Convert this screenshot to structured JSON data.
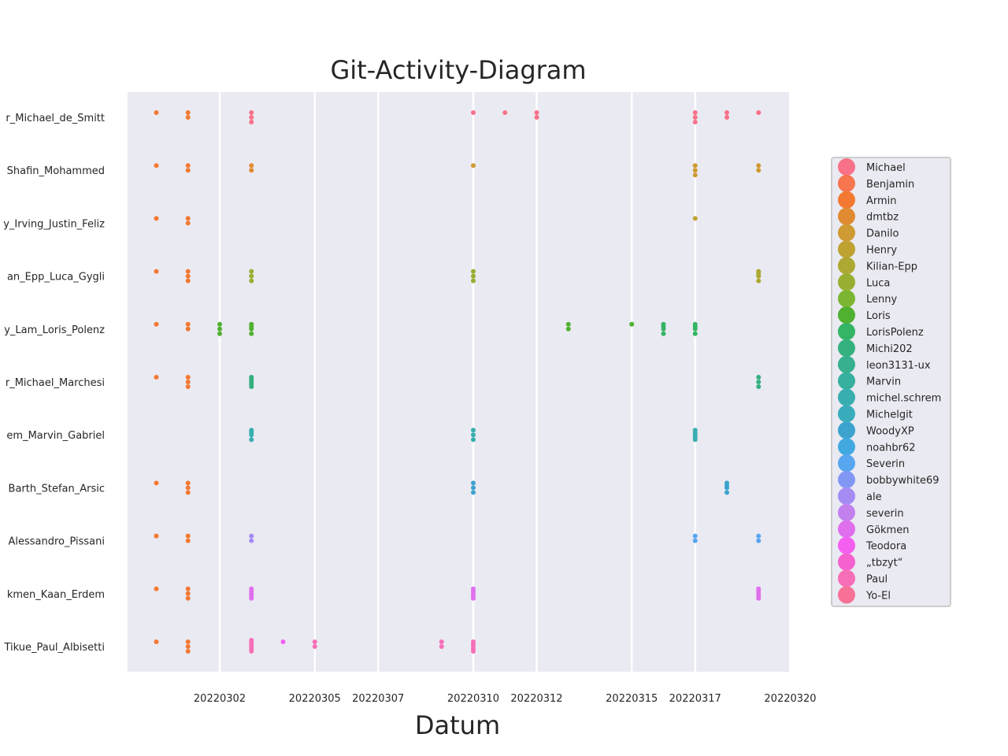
{
  "chart_data": {
    "type": "scatter",
    "title": "Git-Activity-Diagram",
    "xlabel": "Datum",
    "ylabel": "",
    "x_categories": [
      "20220228",
      "20220301",
      "20220302",
      "20220303",
      "20220304",
      "20220305",
      "20220306",
      "20220307",
      "20220308",
      "20220309",
      "20220310",
      "20220311",
      "20220312",
      "20220313",
      "20220314",
      "20220315",
      "20220316",
      "20220317",
      "20220318",
      "20220319",
      "20220320"
    ],
    "x_tick_labels": [
      "20220302",
      "20220305",
      "20220307",
      "20220310",
      "20220312",
      "20220315",
      "20220317",
      "20220320"
    ],
    "y_categories": [
      "r_Michael_de_Smitt",
      "Shafin_Mohammed",
      "y_Irving_Justin_Feliz",
      "an_Epp_Luca_Gygli",
      "y_Lam_Loris_Polenz",
      "r_Michael_Marchesi",
      "em_Marvin_Gabriel",
      "Barth_Stefan_Arsic",
      "Alessandro_Pissani",
      "kmen_Kaan_Erdem",
      "Tikue_Paul_Albisetti"
    ],
    "legend": {
      "placement": "right",
      "entries": [
        {
          "name": "Michael",
          "color": "#f77189"
        },
        {
          "name": "Benjamin",
          "color": "#f7754f"
        },
        {
          "name": "Armin",
          "color": "#f37932"
        },
        {
          "name": "dmtbz",
          "color": "#e08a31"
        },
        {
          "name": "Danilo",
          "color": "#cf9a32"
        },
        {
          "name": "Henry",
          "color": "#bfa232"
        },
        {
          "name": "Kilian-Epp",
          "color": "#ada832"
        },
        {
          "name": "Luca",
          "color": "#98ae32"
        },
        {
          "name": "Lenny",
          "color": "#7cb532"
        },
        {
          "name": "Loris",
          "color": "#50b131"
        },
        {
          "name": "LorisPolenz",
          "color": "#33b565"
        },
        {
          "name": "Michi202",
          "color": "#35b07f"
        },
        {
          "name": "leon3131-ux",
          "color": "#36b08f"
        },
        {
          "name": "Marvin",
          "color": "#37b09f"
        },
        {
          "name": "michel.schrem",
          "color": "#38aeb0"
        },
        {
          "name": "Michelgit",
          "color": "#39acbc"
        },
        {
          "name": "WoodyXP",
          "color": "#3ba3cd"
        },
        {
          "name": "noahbr62",
          "color": "#41a9e0"
        },
        {
          "name": "Severin",
          "color": "#58a6f0"
        },
        {
          "name": "bobbywhite69",
          "color": "#8197f4"
        },
        {
          "name": "ale",
          "color": "#a48cf4"
        },
        {
          "name": "severin",
          "color": "#c381ee"
        },
        {
          "name": "Gökmen",
          "color": "#e06fed"
        },
        {
          "name": "Teodora",
          "color": "#f45ff0"
        },
        {
          "name": "„tbzyt“",
          "color": "#f562d0"
        },
        {
          "name": "Paul",
          "color": "#f66eb7"
        },
        {
          "name": "Yo-El",
          "color": "#f77196"
        }
      ]
    },
    "grid": true,
    "points": [
      {
        "x": "20220228",
        "y": 0,
        "c": "#f37932"
      },
      {
        "x": "20220301",
        "y": 0,
        "c": "#f37932"
      },
      {
        "x": "20220301",
        "y": 0,
        "c": "#f37932"
      },
      {
        "x": "20220303",
        "y": 0,
        "c": "#f77189"
      },
      {
        "x": "20220303",
        "y": 0,
        "c": "#f77189"
      },
      {
        "x": "20220303",
        "y": 0,
        "c": "#f77189"
      },
      {
        "x": "20220310",
        "y": 0,
        "c": "#f77189"
      },
      {
        "x": "20220311",
        "y": 0,
        "c": "#f77189"
      },
      {
        "x": "20220312",
        "y": 0,
        "c": "#f77189"
      },
      {
        "x": "20220312",
        "y": 0,
        "c": "#f77189"
      },
      {
        "x": "20220317",
        "y": 0,
        "c": "#f77189"
      },
      {
        "x": "20220317",
        "y": 0,
        "c": "#f77189"
      },
      {
        "x": "20220317",
        "y": 0,
        "c": "#f77189"
      },
      {
        "x": "20220318",
        "y": 0,
        "c": "#f77189"
      },
      {
        "x": "20220318",
        "y": 0,
        "c": "#f77189"
      },
      {
        "x": "20220319",
        "y": 0,
        "c": "#f77189"
      },
      {
        "x": "20220228",
        "y": 1,
        "c": "#f37932"
      },
      {
        "x": "20220301",
        "y": 1,
        "c": "#f37932"
      },
      {
        "x": "20220301",
        "y": 1,
        "c": "#f37932"
      },
      {
        "x": "20220303",
        "y": 1,
        "c": "#e08a31"
      },
      {
        "x": "20220303",
        "y": 1,
        "c": "#e08a31"
      },
      {
        "x": "20220310",
        "y": 1,
        "c": "#cf9a32"
      },
      {
        "x": "20220317",
        "y": 1,
        "c": "#cf9a32"
      },
      {
        "x": "20220317",
        "y": 1,
        "c": "#cf9a32"
      },
      {
        "x": "20220317",
        "y": 1,
        "c": "#cf9a32"
      },
      {
        "x": "20220319",
        "y": 1,
        "c": "#cf9a32"
      },
      {
        "x": "20220319",
        "y": 1,
        "c": "#cf9a32"
      },
      {
        "x": "20220228",
        "y": 2,
        "c": "#f37932"
      },
      {
        "x": "20220301",
        "y": 2,
        "c": "#f37932"
      },
      {
        "x": "20220301",
        "y": 2,
        "c": "#f37932"
      },
      {
        "x": "20220317",
        "y": 2,
        "c": "#bfa232"
      },
      {
        "x": "20220228",
        "y": 3,
        "c": "#f37932"
      },
      {
        "x": "20220301",
        "y": 3,
        "c": "#f37932"
      },
      {
        "x": "20220301",
        "y": 3,
        "c": "#f37932"
      },
      {
        "x": "20220301",
        "y": 3,
        "c": "#f37932"
      },
      {
        "x": "20220303",
        "y": 3,
        "c": "#98ae32"
      },
      {
        "x": "20220303",
        "y": 3,
        "c": "#98ae32"
      },
      {
        "x": "20220303",
        "y": 3,
        "c": "#98ae32"
      },
      {
        "x": "20220310",
        "y": 3,
        "c": "#98ae32"
      },
      {
        "x": "20220310",
        "y": 3,
        "c": "#98ae32"
      },
      {
        "x": "20220310",
        "y": 3,
        "c": "#98ae32"
      },
      {
        "x": "20220319",
        "y": 3,
        "c": "#ada832"
      },
      {
        "x": "20220319",
        "y": 3,
        "c": "#ada832"
      },
      {
        "x": "20220319",
        "y": 3,
        "c": "#ada832"
      },
      {
        "x": "20220319",
        "y": 3,
        "c": "#ada832"
      },
      {
        "x": "20220228",
        "y": 4,
        "c": "#f37932"
      },
      {
        "x": "20220301",
        "y": 4,
        "c": "#f37932"
      },
      {
        "x": "20220301",
        "y": 4,
        "c": "#f37932"
      },
      {
        "x": "20220302",
        "y": 4,
        "c": "#50b131"
      },
      {
        "x": "20220302",
        "y": 4,
        "c": "#50b131"
      },
      {
        "x": "20220302",
        "y": 4,
        "c": "#50b131"
      },
      {
        "x": "20220303",
        "y": 4,
        "c": "#50b131"
      },
      {
        "x": "20220303",
        "y": 4,
        "c": "#50b131"
      },
      {
        "x": "20220303",
        "y": 4,
        "c": "#50b131"
      },
      {
        "x": "20220303",
        "y": 4,
        "c": "#50b131"
      },
      {
        "x": "20220313",
        "y": 4,
        "c": "#50b131"
      },
      {
        "x": "20220313",
        "y": 4,
        "c": "#50b131"
      },
      {
        "x": "20220315",
        "y": 4,
        "c": "#50b131"
      },
      {
        "x": "20220316",
        "y": 4,
        "c": "#33b565"
      },
      {
        "x": "20220316",
        "y": 4,
        "c": "#33b565"
      },
      {
        "x": "20220316",
        "y": 4,
        "c": "#33b565"
      },
      {
        "x": "20220316",
        "y": 4,
        "c": "#33b565"
      },
      {
        "x": "20220317",
        "y": 4,
        "c": "#33b565"
      },
      {
        "x": "20220317",
        "y": 4,
        "c": "#33b565"
      },
      {
        "x": "20220317",
        "y": 4,
        "c": "#33b565"
      },
      {
        "x": "20220317",
        "y": 4,
        "c": "#33b565"
      },
      {
        "x": "20220228",
        "y": 5,
        "c": "#f37932"
      },
      {
        "x": "20220301",
        "y": 5,
        "c": "#f37932"
      },
      {
        "x": "20220301",
        "y": 5,
        "c": "#f37932"
      },
      {
        "x": "20220301",
        "y": 5,
        "c": "#f37932"
      },
      {
        "x": "20220303",
        "y": 5,
        "c": "#35b07f"
      },
      {
        "x": "20220303",
        "y": 5,
        "c": "#35b07f"
      },
      {
        "x": "20220303",
        "y": 5,
        "c": "#35b07f"
      },
      {
        "x": "20220303",
        "y": 5,
        "c": "#35b07f"
      },
      {
        "x": "20220303",
        "y": 5,
        "c": "#35b07f"
      },
      {
        "x": "20220319",
        "y": 5,
        "c": "#35b07f"
      },
      {
        "x": "20220319",
        "y": 5,
        "c": "#35b07f"
      },
      {
        "x": "20220319",
        "y": 5,
        "c": "#35b07f"
      },
      {
        "x": "20220303",
        "y": 6,
        "c": "#38aeb0"
      },
      {
        "x": "20220303",
        "y": 6,
        "c": "#38aeb0"
      },
      {
        "x": "20220303",
        "y": 6,
        "c": "#38aeb0"
      },
      {
        "x": "20220303",
        "y": 6,
        "c": "#38aeb0"
      },
      {
        "x": "20220310",
        "y": 6,
        "c": "#38aeb0"
      },
      {
        "x": "20220310",
        "y": 6,
        "c": "#38aeb0"
      },
      {
        "x": "20220310",
        "y": 6,
        "c": "#38aeb0"
      },
      {
        "x": "20220317",
        "y": 6,
        "c": "#38aeb0"
      },
      {
        "x": "20220317",
        "y": 6,
        "c": "#38aeb0"
      },
      {
        "x": "20220317",
        "y": 6,
        "c": "#38aeb0"
      },
      {
        "x": "20220317",
        "y": 6,
        "c": "#38aeb0"
      },
      {
        "x": "20220317",
        "y": 6,
        "c": "#38aeb0"
      },
      {
        "x": "20220228",
        "y": 7,
        "c": "#f37932"
      },
      {
        "x": "20220301",
        "y": 7,
        "c": "#f37932"
      },
      {
        "x": "20220301",
        "y": 7,
        "c": "#f37932"
      },
      {
        "x": "20220301",
        "y": 7,
        "c": "#f37932"
      },
      {
        "x": "20220310",
        "y": 7,
        "c": "#3ba3cd"
      },
      {
        "x": "20220310",
        "y": 7,
        "c": "#3ba3cd"
      },
      {
        "x": "20220310",
        "y": 7,
        "c": "#3ba3cd"
      },
      {
        "x": "20220318",
        "y": 7,
        "c": "#3ba3cd"
      },
      {
        "x": "20220318",
        "y": 7,
        "c": "#3ba3cd"
      },
      {
        "x": "20220318",
        "y": 7,
        "c": "#3ba3cd"
      },
      {
        "x": "20220318",
        "y": 7,
        "c": "#3ba3cd"
      },
      {
        "x": "20220228",
        "y": 8,
        "c": "#f37932"
      },
      {
        "x": "20220301",
        "y": 8,
        "c": "#f37932"
      },
      {
        "x": "20220301",
        "y": 8,
        "c": "#f37932"
      },
      {
        "x": "20220303",
        "y": 8,
        "c": "#a48cf4"
      },
      {
        "x": "20220303",
        "y": 8,
        "c": "#a48cf4"
      },
      {
        "x": "20220317",
        "y": 8,
        "c": "#58a6f0"
      },
      {
        "x": "20220317",
        "y": 8,
        "c": "#58a6f0"
      },
      {
        "x": "20220319",
        "y": 8,
        "c": "#58a6f0"
      },
      {
        "x": "20220319",
        "y": 8,
        "c": "#58a6f0"
      },
      {
        "x": "20220228",
        "y": 9,
        "c": "#f37932"
      },
      {
        "x": "20220301",
        "y": 9,
        "c": "#f37932"
      },
      {
        "x": "20220301",
        "y": 9,
        "c": "#f37932"
      },
      {
        "x": "20220301",
        "y": 9,
        "c": "#f37932"
      },
      {
        "x": "20220303",
        "y": 9,
        "c": "#e06fed"
      },
      {
        "x": "20220303",
        "y": 9,
        "c": "#e06fed"
      },
      {
        "x": "20220303",
        "y": 9,
        "c": "#e06fed"
      },
      {
        "x": "20220303",
        "y": 9,
        "c": "#e06fed"
      },
      {
        "x": "20220303",
        "y": 9,
        "c": "#e06fed"
      },
      {
        "x": "20220310",
        "y": 9,
        "c": "#e06fed"
      },
      {
        "x": "20220310",
        "y": 9,
        "c": "#e06fed"
      },
      {
        "x": "20220310",
        "y": 9,
        "c": "#e06fed"
      },
      {
        "x": "20220310",
        "y": 9,
        "c": "#e06fed"
      },
      {
        "x": "20220310",
        "y": 9,
        "c": "#e06fed"
      },
      {
        "x": "20220319",
        "y": 9,
        "c": "#e06fed"
      },
      {
        "x": "20220319",
        "y": 9,
        "c": "#e06fed"
      },
      {
        "x": "20220319",
        "y": 9,
        "c": "#e06fed"
      },
      {
        "x": "20220319",
        "y": 9,
        "c": "#e06fed"
      },
      {
        "x": "20220319",
        "y": 9,
        "c": "#e06fed"
      },
      {
        "x": "20220228",
        "y": 10,
        "c": "#f37932"
      },
      {
        "x": "20220301",
        "y": 10,
        "c": "#f37932"
      },
      {
        "x": "20220301",
        "y": 10,
        "c": "#f37932"
      },
      {
        "x": "20220301",
        "y": 10,
        "c": "#f37932"
      },
      {
        "x": "20220303",
        "y": 10,
        "c": "#f66eb7"
      },
      {
        "x": "20220303",
        "y": 10,
        "c": "#f66eb7"
      },
      {
        "x": "20220303",
        "y": 10,
        "c": "#f66eb7"
      },
      {
        "x": "20220303",
        "y": 10,
        "c": "#f66eb7"
      },
      {
        "x": "20220303",
        "y": 10,
        "c": "#f66eb7"
      },
      {
        "x": "20220303",
        "y": 10,
        "c": "#f66eb7"
      },
      {
        "x": "20220304",
        "y": 10,
        "c": "#f45ff0"
      },
      {
        "x": "20220305",
        "y": 10,
        "c": "#f66eb7"
      },
      {
        "x": "20220305",
        "y": 10,
        "c": "#f66eb7"
      },
      {
        "x": "20220309",
        "y": 10,
        "c": "#f66eb7"
      },
      {
        "x": "20220309",
        "y": 10,
        "c": "#f66eb7"
      },
      {
        "x": "20220310",
        "y": 10,
        "c": "#f66eb7"
      },
      {
        "x": "20220310",
        "y": 10,
        "c": "#f66eb7"
      },
      {
        "x": "20220310",
        "y": 10,
        "c": "#f66eb7"
      },
      {
        "x": "20220310",
        "y": 10,
        "c": "#f66eb7"
      },
      {
        "x": "20220310",
        "y": 10,
        "c": "#f66eb7"
      }
    ]
  }
}
